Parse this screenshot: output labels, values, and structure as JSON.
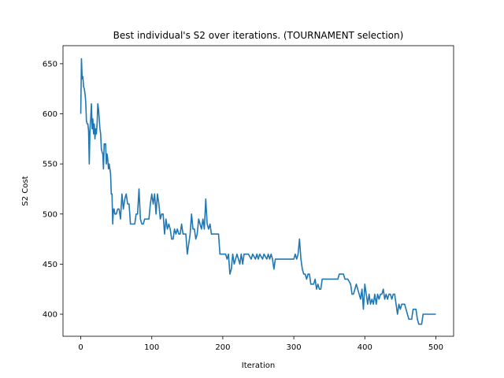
{
  "chart_data": {
    "type": "line",
    "title": "Best individual's S2 over iterations. (TOURNAMENT selection)",
    "xlabel": "Iteration",
    "ylabel": "S2 Cost",
    "xlim": [
      -25,
      525
    ],
    "ylim": [
      378,
      668
    ],
    "xticks": [
      0,
      100,
      200,
      300,
      400,
      500
    ],
    "yticks": [
      400,
      450,
      500,
      550,
      600,
      650
    ],
    "grid": false,
    "legend": "none",
    "series": [
      {
        "color": "#1f77b4",
        "points": [
          [
            0,
            600
          ],
          [
            1,
            655
          ],
          [
            2,
            635
          ],
          [
            3,
            637
          ],
          [
            4,
            627
          ],
          [
            5,
            625
          ],
          [
            6,
            620
          ],
          [
            7,
            612
          ],
          [
            8,
            593
          ],
          [
            9,
            590
          ],
          [
            10,
            590
          ],
          [
            11,
            583
          ],
          [
            12,
            550
          ],
          [
            13,
            585
          ],
          [
            14,
            595
          ],
          [
            15,
            610
          ],
          [
            16,
            585
          ],
          [
            17,
            595
          ],
          [
            18,
            580
          ],
          [
            19,
            590
          ],
          [
            20,
            575
          ],
          [
            21,
            585
          ],
          [
            22,
            580
          ],
          [
            23,
            590
          ],
          [
            24,
            610
          ],
          [
            25,
            605
          ],
          [
            26,
            595
          ],
          [
            27,
            585
          ],
          [
            28,
            580
          ],
          [
            29,
            565
          ],
          [
            30,
            562
          ],
          [
            31,
            560
          ],
          [
            32,
            545
          ],
          [
            33,
            570
          ],
          [
            34,
            570
          ],
          [
            35,
            570
          ],
          [
            36,
            550
          ],
          [
            37,
            560
          ],
          [
            38,
            555
          ],
          [
            39,
            545
          ],
          [
            40,
            550
          ],
          [
            41,
            545
          ],
          [
            42,
            540
          ],
          [
            43,
            520
          ],
          [
            44,
            520
          ],
          [
            45,
            490
          ],
          [
            46,
            505
          ],
          [
            47,
            505
          ],
          [
            48,
            500
          ],
          [
            50,
            500
          ],
          [
            52,
            505
          ],
          [
            54,
            505
          ],
          [
            56,
            495
          ],
          [
            58,
            520
          ],
          [
            60,
            505
          ],
          [
            62,
            515
          ],
          [
            64,
            520
          ],
          [
            66,
            510
          ],
          [
            68,
            510
          ],
          [
            70,
            490
          ],
          [
            72,
            490
          ],
          [
            74,
            490
          ],
          [
            76,
            490
          ],
          [
            78,
            500
          ],
          [
            80,
            500
          ],
          [
            82,
            525
          ],
          [
            84,
            495
          ],
          [
            86,
            490
          ],
          [
            88,
            490
          ],
          [
            90,
            495
          ],
          [
            92,
            495
          ],
          [
            94,
            495
          ],
          [
            96,
            495
          ],
          [
            98,
            510
          ],
          [
            100,
            520
          ],
          [
            102,
            510
          ],
          [
            104,
            520
          ],
          [
            106,
            500
          ],
          [
            108,
            520
          ],
          [
            110,
            510
          ],
          [
            112,
            495
          ],
          [
            114,
            500
          ],
          [
            116,
            500
          ],
          [
            118,
            480
          ],
          [
            120,
            495
          ],
          [
            122,
            485
          ],
          [
            124,
            490
          ],
          [
            126,
            485
          ],
          [
            128,
            475
          ],
          [
            130,
            475
          ],
          [
            132,
            485
          ],
          [
            134,
            480
          ],
          [
            136,
            485
          ],
          [
            138,
            480
          ],
          [
            140,
            480
          ],
          [
            142,
            490
          ],
          [
            144,
            480
          ],
          [
            146,
            480
          ],
          [
            148,
            480
          ],
          [
            150,
            460
          ],
          [
            152,
            470
          ],
          [
            154,
            480
          ],
          [
            156,
            500
          ],
          [
            158,
            485
          ],
          [
            160,
            485
          ],
          [
            162,
            475
          ],
          [
            164,
            480
          ],
          [
            166,
            495
          ],
          [
            168,
            490
          ],
          [
            170,
            485
          ],
          [
            172,
            495
          ],
          [
            174,
            485
          ],
          [
            176,
            515
          ],
          [
            178,
            490
          ],
          [
            180,
            485
          ],
          [
            182,
            490
          ],
          [
            184,
            480
          ],
          [
            186,
            480
          ],
          [
            190,
            480
          ],
          [
            194,
            480
          ],
          [
            196,
            460
          ],
          [
            200,
            460
          ],
          [
            204,
            460
          ],
          [
            206,
            455
          ],
          [
            208,
            460
          ],
          [
            210,
            440
          ],
          [
            212,
            445
          ],
          [
            214,
            460
          ],
          [
            216,
            450
          ],
          [
            218,
            455
          ],
          [
            220,
            460
          ],
          [
            222,
            455
          ],
          [
            224,
            450
          ],
          [
            226,
            460
          ],
          [
            228,
            450
          ],
          [
            230,
            460
          ],
          [
            232,
            460
          ],
          [
            236,
            460
          ],
          [
            240,
            455
          ],
          [
            242,
            460
          ],
          [
            246,
            455
          ],
          [
            248,
            460
          ],
          [
            250,
            455
          ],
          [
            252,
            460
          ],
          [
            256,
            455
          ],
          [
            258,
            460
          ],
          [
            262,
            455
          ],
          [
            264,
            460
          ],
          [
            266,
            455
          ],
          [
            268,
            460
          ],
          [
            270,
            455
          ],
          [
            272,
            445
          ],
          [
            274,
            455
          ],
          [
            280,
            455
          ],
          [
            286,
            455
          ],
          [
            290,
            455
          ],
          [
            296,
            455
          ],
          [
            300,
            455
          ],
          [
            302,
            460
          ],
          [
            304,
            455
          ],
          [
            306,
            460
          ],
          [
            308,
            475
          ],
          [
            310,
            455
          ],
          [
            312,
            445
          ],
          [
            314,
            440
          ],
          [
            316,
            440
          ],
          [
            318,
            435
          ],
          [
            320,
            440
          ],
          [
            322,
            440
          ],
          [
            324,
            430
          ],
          [
            326,
            430
          ],
          [
            328,
            430
          ],
          [
            330,
            435
          ],
          [
            332,
            425
          ],
          [
            334,
            430
          ],
          [
            336,
            425
          ],
          [
            338,
            425
          ],
          [
            340,
            435
          ],
          [
            344,
            435
          ],
          [
            350,
            435
          ],
          [
            356,
            435
          ],
          [
            362,
            435
          ],
          [
            364,
            440
          ],
          [
            366,
            440
          ],
          [
            368,
            440
          ],
          [
            370,
            440
          ],
          [
            372,
            435
          ],
          [
            376,
            435
          ],
          [
            380,
            430
          ],
          [
            382,
            420
          ],
          [
            384,
            420
          ],
          [
            386,
            425
          ],
          [
            388,
            430
          ],
          [
            390,
            425
          ],
          [
            392,
            420
          ],
          [
            394,
            415
          ],
          [
            396,
            425
          ],
          [
            398,
            405
          ],
          [
            400,
            430
          ],
          [
            402,
            420
          ],
          [
            404,
            410
          ],
          [
            406,
            420
          ],
          [
            408,
            410
          ],
          [
            410,
            415
          ],
          [
            412,
            410
          ],
          [
            414,
            420
          ],
          [
            416,
            410
          ],
          [
            418,
            420
          ],
          [
            420,
            415
          ],
          [
            422,
            420
          ],
          [
            424,
            420
          ],
          [
            426,
            425
          ],
          [
            428,
            415
          ],
          [
            430,
            420
          ],
          [
            432,
            415
          ],
          [
            434,
            420
          ],
          [
            436,
            420
          ],
          [
            438,
            415
          ],
          [
            440,
            420
          ],
          [
            442,
            420
          ],
          [
            444,
            410
          ],
          [
            446,
            400
          ],
          [
            448,
            410
          ],
          [
            450,
            405
          ],
          [
            452,
            410
          ],
          [
            454,
            410
          ],
          [
            456,
            410
          ],
          [
            458,
            405
          ],
          [
            460,
            400
          ],
          [
            462,
            395
          ],
          [
            464,
            395
          ],
          [
            466,
            395
          ],
          [
            468,
            405
          ],
          [
            470,
            405
          ],
          [
            472,
            405
          ],
          [
            474,
            395
          ],
          [
            476,
            390
          ],
          [
            478,
            390
          ],
          [
            480,
            390
          ],
          [
            482,
            400
          ],
          [
            484,
            400
          ],
          [
            488,
            400
          ],
          [
            492,
            400
          ],
          [
            496,
            400
          ],
          [
            500,
            400
          ]
        ]
      }
    ]
  }
}
